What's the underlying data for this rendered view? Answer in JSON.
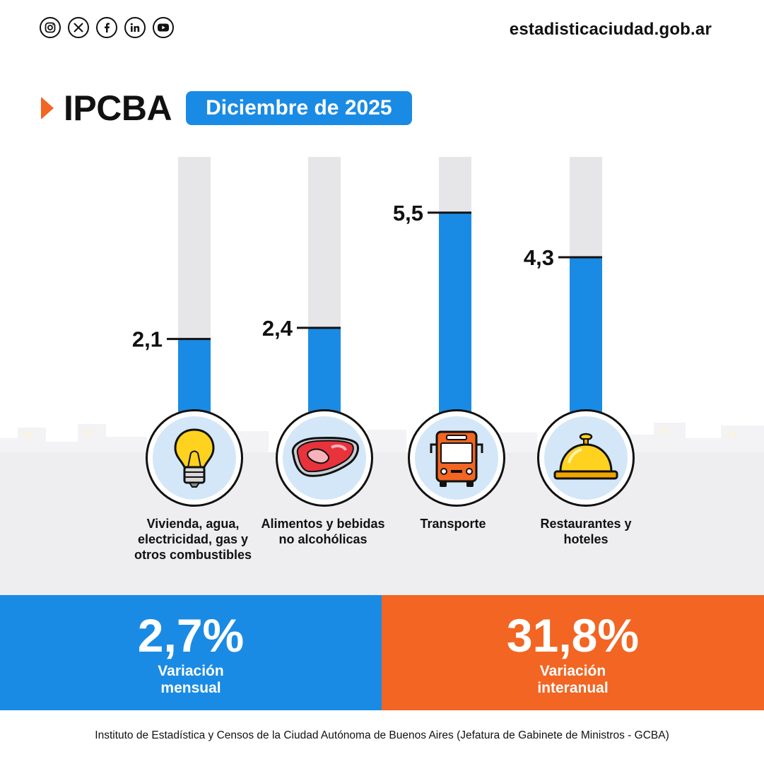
{
  "header": {
    "site": "estadisticaciudad.gob.ar",
    "social_icons": [
      "instagram-icon",
      "x-icon",
      "facebook-icon",
      "linkedin-icon",
      "youtube-icon"
    ]
  },
  "title": {
    "main": "IPCBA",
    "date": "Diciembre de 2025"
  },
  "colors": {
    "blue": "#1a8be4",
    "orange": "#f26522",
    "track": "#e6e6e8"
  },
  "chart_data": {
    "type": "bar",
    "categories": [
      "Vivienda, agua, electricidad, gas y otros combustibles",
      "Alimentos y bebidas no alcohólicas",
      "Transporte",
      "Restaurantes y hoteles"
    ],
    "values": [
      2.1,
      2.4,
      5.5,
      4.3
    ],
    "value_labels": [
      "2,1",
      "2,4",
      "5,5",
      "4,3"
    ],
    "ylim": [
      0,
      7
    ],
    "title": "IPCBA Diciembre de 2025",
    "xlabel": "",
    "ylabel": "",
    "grid": false
  },
  "categories_display": [
    {
      "label": "Vivienda, agua, electricidad, gas y otros combustibles",
      "icon": "lightbulb-icon"
    },
    {
      "label": "Alimentos y bebidas no alcohólicas",
      "icon": "meat-icon"
    },
    {
      "label": "Transporte",
      "icon": "bus-icon"
    },
    {
      "label": "Restaurantes y hoteles",
      "icon": "service-bell-icon"
    }
  ],
  "summary": {
    "monthly": {
      "value": "2,7%",
      "label": "Variación mensual"
    },
    "annual": {
      "value": "31,8%",
      "label": "Variación interanual"
    }
  },
  "footer": "Instituto de Estadística y Censos de la Ciudad Autónoma de Buenos Aires (Jefatura de Gabinete de Ministros - GCBA)"
}
